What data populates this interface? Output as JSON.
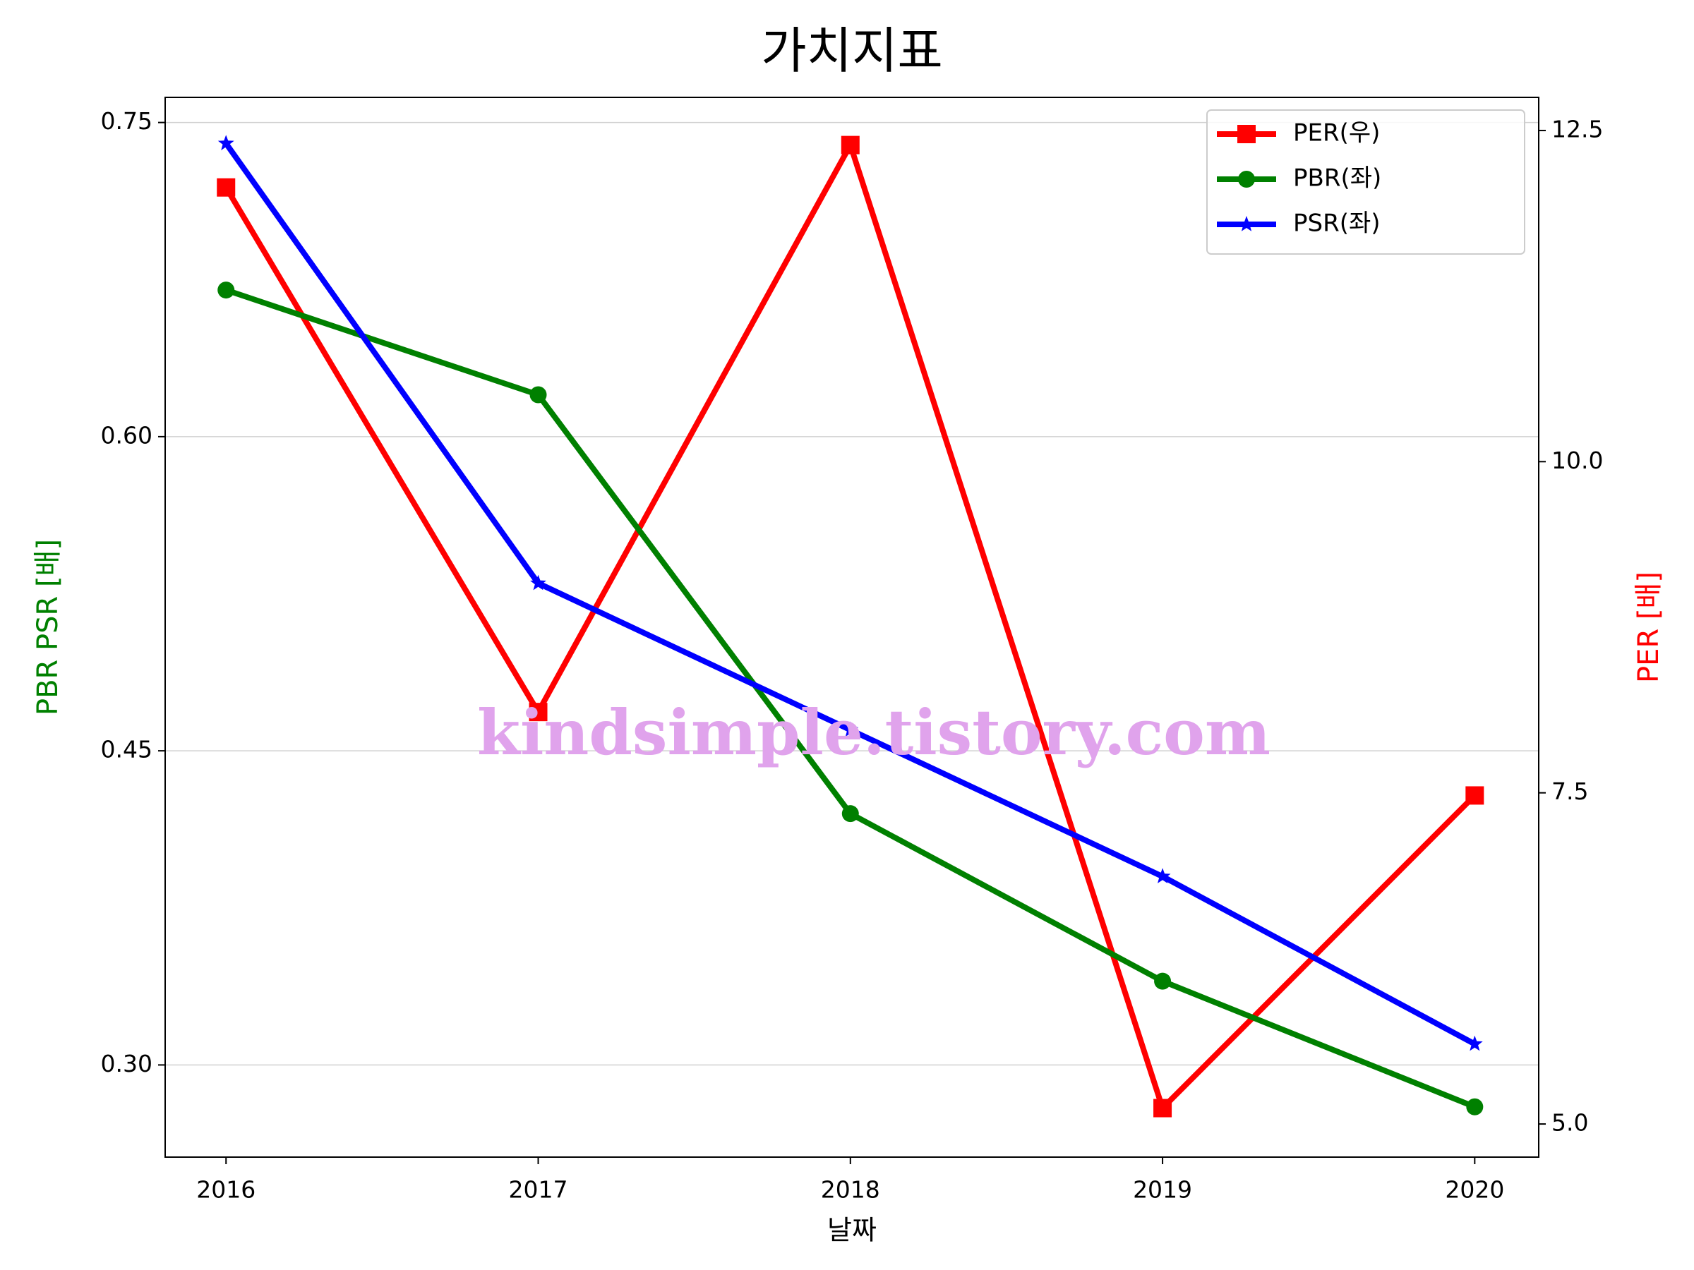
{
  "chart_data": {
    "type": "line",
    "title": "가치지표",
    "xlabel": "날짜",
    "ylabel": "PBR PSR [배]",
    "ylabel_color": "green",
    "y2label": "PER [배]",
    "y2label_color": "red",
    "x": [
      2016,
      2017,
      2018,
      2019,
      2020
    ],
    "xlim": [
      2015.805,
      2020.205
    ],
    "xticks": [
      2016,
      2017,
      2018,
      2019,
      2020
    ],
    "ylim": [
      0.256,
      0.762
    ],
    "yticks": [
      {
        "value": 0.3,
        "label": "0.30"
      },
      {
        "value": 0.45,
        "label": "0.45"
      },
      {
        "value": 0.6,
        "label": "0.60"
      },
      {
        "value": 0.75,
        "label": "0.75"
      }
    ],
    "y2lim": [
      4.75,
      12.75
    ],
    "y2ticks": [
      {
        "value": 5,
        "label": "5.0"
      },
      {
        "value": 7.5,
        "label": "7.5"
      },
      {
        "value": 10,
        "label": "10.0"
      },
      {
        "value": 12.5,
        "label": "12.5"
      }
    ],
    "grid": "y",
    "legend": "upper right",
    "series": [
      {
        "name": "PER(우)",
        "color": "red",
        "marker": "square",
        "axis": "y2",
        "values": [
          12.07,
          8.11,
          12.39,
          5.12,
          7.48
        ]
      },
      {
        "name": "PBR(좌)",
        "color": "green",
        "marker": "circle",
        "values": [
          0.67,
          0.62,
          0.42,
          0.34,
          0.28
        ]
      },
      {
        "name": "PSR(좌)",
        "color": "blue",
        "marker": "star",
        "values": [
          0.74,
          0.53,
          0.46,
          0.39,
          0.31
        ]
      }
    ],
    "watermark": "kindsimple.tistory.com",
    "watermark_color": "#e0a3ec"
  }
}
